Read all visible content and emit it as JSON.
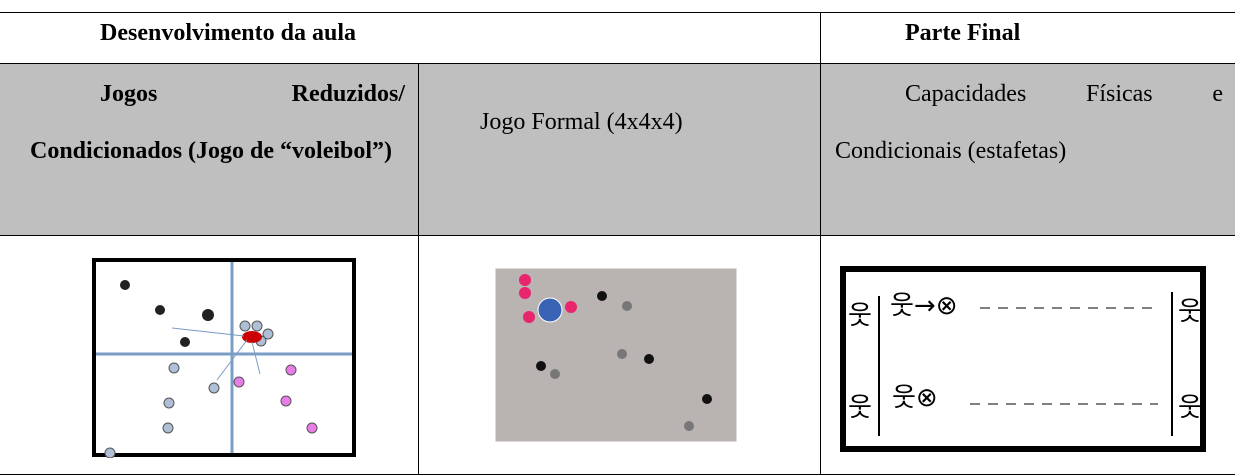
{
  "header": {
    "left": "Desenvolvimento da aula",
    "right": "Parte Final"
  },
  "activities": [
    "Jogos Reduzidos/ Condicionados (Jogo de “voleibol”)",
    "Jogo Formal (4x4x4)",
    "Capacidades Físicas e Condicionais (estafetas)"
  ]
}
